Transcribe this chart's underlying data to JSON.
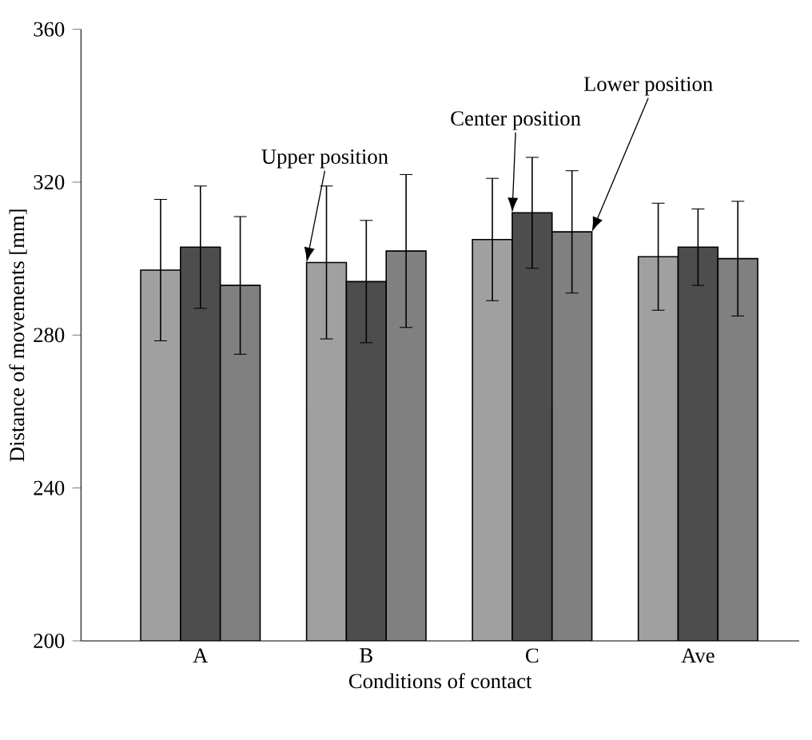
{
  "chart_data": {
    "type": "bar",
    "xlabel": "Conditions of contact",
    "ylabel": "Distance of movements [mm]",
    "categories": [
      "A",
      "B",
      "C",
      "Ave"
    ],
    "series": [
      {
        "name": "Upper position",
        "color": "#a0a0a0",
        "values": [
          297,
          299,
          305,
          300.5
        ],
        "errors": [
          18.5,
          20,
          16,
          14
        ]
      },
      {
        "name": "Center position",
        "color": "#4d4d4d",
        "values": [
          303,
          294,
          312,
          303
        ],
        "errors": [
          16,
          16,
          14.5,
          10
        ]
      },
      {
        "name": "Lower position",
        "color": "#808080",
        "values": [
          293,
          302,
          307,
          300
        ],
        "errors": [
          18,
          20,
          16,
          15
        ]
      }
    ],
    "ylim": [
      200,
      360
    ],
    "yticks": [
      200,
      240,
      280,
      320,
      360
    ],
    "grid": false
  }
}
